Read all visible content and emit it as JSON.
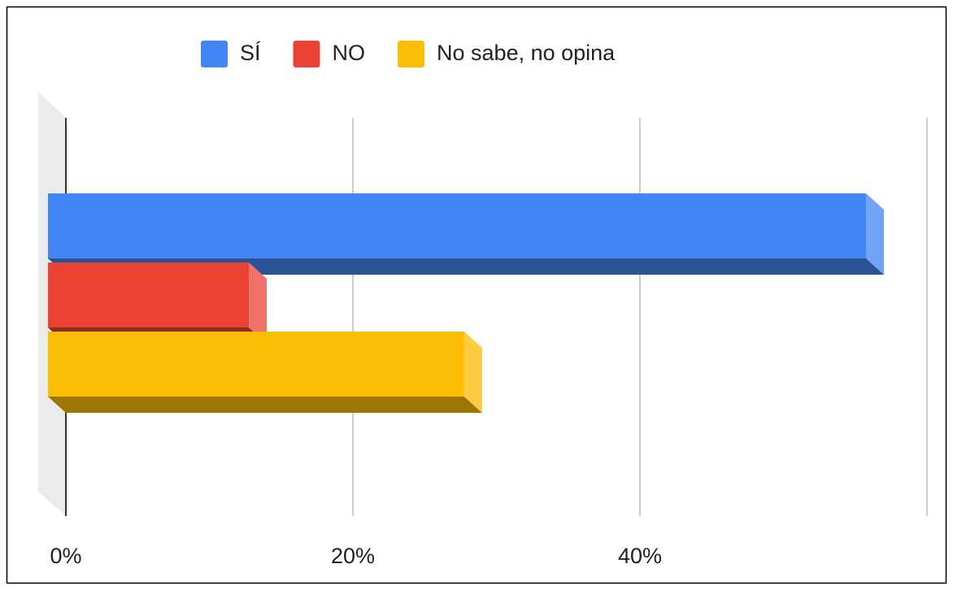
{
  "chart_data": {
    "type": "bar3d",
    "orientation": "horizontal",
    "categories": [
      null
    ],
    "series": [
      {
        "name": "SÍ",
        "color": "#4285f4",
        "values": [
          57
        ]
      },
      {
        "name": "NO",
        "color": "#ea4335",
        "values": [
          14
        ]
      },
      {
        "name": "No sabe, no opina",
        "color": "#fbbc04",
        "values": [
          29
        ]
      }
    ],
    "xlim": [
      0,
      60
    ],
    "xticks": [
      {
        "value": 0,
        "label": "0%"
      },
      {
        "value": 20,
        "label": "20%"
      },
      {
        "value": 40,
        "label": "40%"
      }
    ],
    "grid": true,
    "legend": "top"
  }
}
